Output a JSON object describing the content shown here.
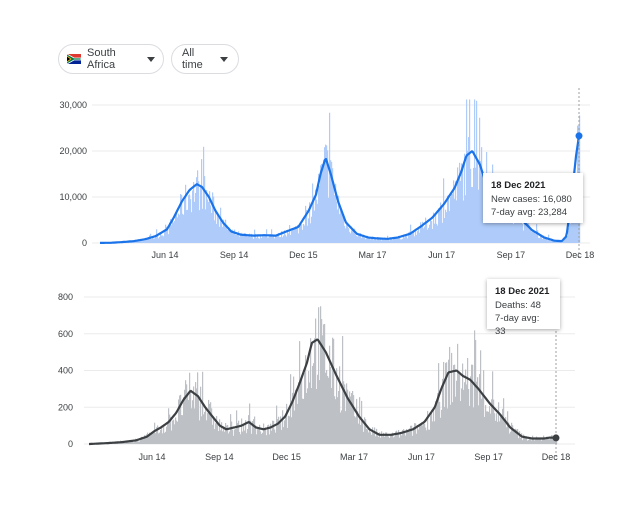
{
  "filters": {
    "country": {
      "label": "South Africa",
      "flag_icon": "south-africa-flag-icon"
    },
    "time_range": {
      "label": "All time"
    }
  },
  "colors": {
    "cases_line": "#1a73e8",
    "cases_fill": "#aecbfa",
    "deaths_line": "#3c4043",
    "deaths_fill": "#bdc1c6",
    "grid": "#ebebeb"
  },
  "tooltips": {
    "cases": {
      "date": "18 Dec 2021",
      "new_cases": "New cases: 16,080",
      "avg": "7-day avg: 23,284"
    },
    "deaths": {
      "date": "18 Dec 2021",
      "deaths": "Deaths: 48",
      "avg": "7-day avg: 33"
    }
  },
  "chart_data": [
    {
      "type": "area",
      "title": "",
      "x_ticks": [
        "Jun 14",
        "Sep 14",
        "Dec 15",
        "Mar 17",
        "Jun 17",
        "Sep 17",
        "Dec 18"
      ],
      "y_ticks": [
        "0",
        "10,000",
        "20,000",
        "30,000"
      ],
      "ylim": [
        0,
        30000
      ],
      "grid": true,
      "series": [
        {
          "kind": "7-day average",
          "x": [
            "Mar 5",
            "Mar 20",
            "Apr 5",
            "Apr 20",
            "May 5",
            "May 20",
            "Jun 5",
            "Jun 14",
            "Jun 25",
            "Jul 5",
            "Jul 15",
            "Jul 22",
            "Aug 1",
            "Aug 10",
            "Aug 20",
            "Sep 1",
            "Sep 14",
            "Oct 1",
            "Oct 15",
            "Nov 1",
            "Nov 15",
            "Dec 1",
            "Dec 15",
            "Dec 25",
            "Jan 1",
            "Jan 8",
            "Jan 15",
            "Jan 25",
            "Feb 5",
            "Feb 20",
            "Mar 5",
            "Mar 17",
            "Apr 1",
            "Apr 15",
            "May 1",
            "May 15",
            "Jun 1",
            "Jun 17",
            "Jul 1",
            "Jul 10",
            "Jul 17",
            "Jul 25",
            "Aug 5",
            "Aug 15",
            "Sep 1",
            "Sep 17",
            "Oct 1",
            "Oct 15",
            "Nov 1",
            "Nov 15",
            "Nov 25",
            "Dec 1",
            "Dec 8",
            "Dec 14",
            "Dec 18"
          ],
          "values": [
            20,
            50,
            200,
            400,
            800,
            1500,
            3000,
            5500,
            9000,
            11500,
            12800,
            12200,
            10000,
            7000,
            4500,
            2500,
            1800,
            1600,
            1700,
            1600,
            2500,
            3500,
            7000,
            10500,
            15000,
            18500,
            15000,
            9000,
            4500,
            2000,
            1200,
            1000,
            900,
            1200,
            2000,
            3500,
            5500,
            8500,
            12000,
            15500,
            19000,
            20000,
            17000,
            12000,
            9500,
            8000,
            5000,
            2800,
            1200,
            500,
            400,
            1500,
            10000,
            19000,
            23284
          ]
        }
      ]
    },
    {
      "type": "area",
      "title": "",
      "x_ticks": [
        "Jun 14",
        "Sep 14",
        "Dec 15",
        "Mar 17",
        "Jun 17",
        "Sep 17",
        "Dec 18"
      ],
      "y_ticks": [
        "0",
        "200",
        "400",
        "600",
        "800"
      ],
      "ylim": [
        0,
        800
      ],
      "grid": true,
      "series": [
        {
          "kind": "7-day average",
          "x": [
            "Mar 5",
            "Apr 1",
            "Apr 20",
            "May 10",
            "May 25",
            "Jun 5",
            "Jun 14",
            "Jun 25",
            "Jul 5",
            "Jul 15",
            "Jul 25",
            "Aug 5",
            "Aug 15",
            "Aug 25",
            "Sep 5",
            "Sep 14",
            "Sep 25",
            "Oct 5",
            "Oct 15",
            "Oct 25",
            "Nov 5",
            "Nov 15",
            "Nov 25",
            "Dec 5",
            "Dec 15",
            "Dec 25",
            "Jan 5",
            "Jan 12",
            "Jan 20",
            "Feb 1",
            "Feb 15",
            "Mar 1",
            "Mar 17",
            "Apr 1",
            "Apr 15",
            "May 1",
            "May 15",
            "Jun 1",
            "Jun 17",
            "Jul 1",
            "Jul 10",
            "Jul 20",
            "Aug 1",
            "Aug 10",
            "Aug 20",
            "Sep 1",
            "Sep 17",
            "Oct 1",
            "Oct 15",
            "Nov 1",
            "Nov 15",
            "Dec 1",
            "Dec 10",
            "Dec 18"
          ],
          "values": [
            0,
            5,
            10,
            20,
            40,
            70,
            90,
            120,
            170,
            240,
            290,
            260,
            200,
            150,
            100,
            80,
            90,
            100,
            120,
            90,
            80,
            90,
            110,
            150,
            230,
            330,
            440,
            550,
            570,
            500,
            380,
            250,
            150,
            80,
            50,
            50,
            60,
            80,
            120,
            200,
            300,
            390,
            400,
            370,
            350,
            300,
            220,
            160,
            90,
            40,
            30,
            30,
            35,
            33
          ]
        }
      ]
    }
  ]
}
